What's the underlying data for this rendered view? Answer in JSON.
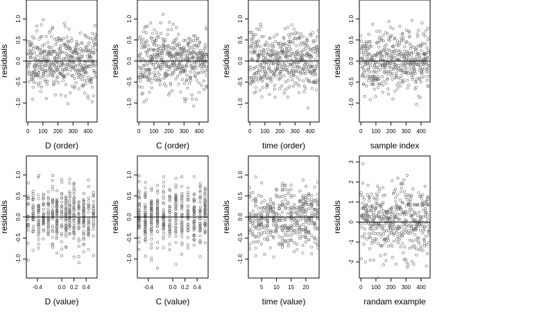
{
  "chart_data": [
    {
      "type": "scatter",
      "xlabel": "D (order)",
      "ylabel": "residuals",
      "xlim": [
        -10,
        460
      ],
      "ylim": [
        -1.45,
        1.45
      ],
      "xticks": [
        0,
        100,
        200,
        300,
        400
      ],
      "xtick_labels": [
        "0",
        "100",
        "200",
        "300",
        "400"
      ],
      "yticks": [
        -1,
        -0.5,
        0,
        0.5,
        1
      ],
      "ytick_labels": [
        "-1.0",
        "-0.5",
        "0.0",
        "0.5",
        "1.0"
      ],
      "hline": 0,
      "gen": {
        "kind": "seq",
        "n": 460,
        "from": 0,
        "to": 455,
        "spread": 0.36,
        "seed": 11
      }
    },
    {
      "type": "scatter",
      "xlabel": "C (order)",
      "ylabel": "residuals",
      "xlim": [
        -10,
        460
      ],
      "ylim": [
        -1.45,
        1.45
      ],
      "xticks": [
        0,
        100,
        200,
        300,
        400
      ],
      "xtick_labels": [
        "0",
        "100",
        "200",
        "300",
        "400"
      ],
      "yticks": [
        -1,
        -0.5,
        0,
        0.5,
        1
      ],
      "ytick_labels": [
        "-1.0",
        "-0.5",
        "0.0",
        "0.5",
        "1.0"
      ],
      "hline": 0,
      "gen": {
        "kind": "seq",
        "n": 460,
        "from": 0,
        "to": 455,
        "spread": 0.36,
        "seed": 23
      }
    },
    {
      "type": "scatter",
      "xlabel": "time (order)",
      "ylabel": "residuals",
      "xlim": [
        -10,
        460
      ],
      "ylim": [
        -1.45,
        1.45
      ],
      "xticks": [
        0,
        100,
        200,
        300,
        400
      ],
      "xtick_labels": [
        "0",
        "100",
        "200",
        "300",
        "400"
      ],
      "yticks": [
        -1,
        -0.5,
        0,
        0.5,
        1
      ],
      "ytick_labels": [
        "-1.0",
        "-0.5",
        "0.0",
        "0.5",
        "1.0"
      ],
      "hline": 0,
      "gen": {
        "kind": "seq",
        "n": 460,
        "from": 0,
        "to": 455,
        "spread": 0.36,
        "seed": 37
      }
    },
    {
      "type": "scatter",
      "xlabel": "sample index",
      "ylabel": "residuals",
      "xlim": [
        -10,
        460
      ],
      "ylim": [
        -1.45,
        1.45
      ],
      "xticks": [
        0,
        100,
        200,
        300,
        400
      ],
      "xtick_labels": [
        "0",
        "100",
        "200",
        "300",
        "400"
      ],
      "yticks": [
        -1,
        -0.5,
        0,
        0.5,
        1
      ],
      "ytick_labels": [
        "-1.0",
        "-0.5",
        "0.0",
        "0.5",
        "1.0"
      ],
      "hline": 0,
      "gen": {
        "kind": "seq",
        "n": 460,
        "from": 0,
        "to": 455,
        "spread": 0.36,
        "seed": 41
      }
    },
    {
      "type": "scatter",
      "xlabel": "D (value)",
      "ylabel": "residuals",
      "xlim": [
        -0.58,
        0.58
      ],
      "ylim": [
        -1.45,
        1.45
      ],
      "xticks": [
        -0.4,
        0,
        0.2,
        0.4
      ],
      "xtick_labels": [
        "-0.4",
        "0.0",
        "0.2",
        "0.4"
      ],
      "yticks": [
        -1,
        -0.5,
        0,
        0.5,
        1
      ],
      "ytick_labels": [
        "-1.0",
        "-0.5",
        "0.0",
        "0.5",
        "1.0"
      ],
      "hline": 0,
      "gen": {
        "kind": "levels",
        "n": 460,
        "levels": [
          -0.55,
          -0.47,
          -0.38,
          -0.3,
          -0.22,
          -0.15,
          -0.08,
          0,
          0.07,
          0.13,
          0.2,
          0.28,
          0.36,
          0.44,
          0.52
        ],
        "spread": 0.36,
        "seed": 53
      }
    },
    {
      "type": "scatter",
      "xlabel": "C (value)",
      "ylabel": "residuals",
      "xlim": [
        -0.58,
        0.58
      ],
      "ylim": [
        -1.45,
        1.45
      ],
      "xticks": [
        -0.4,
        0,
        0.2,
        0.4
      ],
      "xtick_labels": [
        "-0.4",
        "0.0",
        "0.2",
        "0.4"
      ],
      "yticks": [
        -1,
        -0.5,
        0,
        0.5,
        1
      ],
      "ytick_labels": [
        "-1.0",
        "-0.5",
        "0.0",
        "0.5",
        "1.0"
      ],
      "hline": 0,
      "gen": {
        "kind": "levels",
        "n": 460,
        "levels": [
          -0.55,
          -0.45,
          -0.35,
          -0.25,
          -0.15,
          -0.05,
          0.05,
          0.15,
          0.25,
          0.35,
          0.45,
          0.53
        ],
        "spread": 0.36,
        "seed": 67
      }
    },
    {
      "type": "scatter",
      "xlabel": "time (value)",
      "ylabel": "residuals",
      "xlim": [
        0.5,
        24.5
      ],
      "ylim": [
        -1.45,
        1.45
      ],
      "xticks": [
        5,
        10,
        15,
        20
      ],
      "xtick_labels": [
        "5",
        "10",
        "15",
        "20"
      ],
      "yticks": [
        -1,
        -0.5,
        0,
        0.5,
        1
      ],
      "ytick_labels": [
        "-1.0",
        "-0.5",
        "0.0",
        "0.5",
        "1.0"
      ],
      "hline": 0,
      "gen": {
        "kind": "levels",
        "n": 460,
        "levels": [
          1,
          2,
          3,
          4,
          5,
          6,
          7,
          8,
          9,
          10,
          11,
          12,
          13,
          14,
          15,
          16,
          17,
          18,
          19,
          20,
          21,
          22,
          23,
          24
        ],
        "spread": 0.36,
        "seed": 79
      }
    },
    {
      "type": "scatter",
      "xlabel": "randam example",
      "ylabel": "residuals",
      "xlim": [
        -10,
        460
      ],
      "ylim": [
        -2.8,
        3.3
      ],
      "xticks": [
        0,
        100,
        200,
        300,
        400
      ],
      "xtick_labels": [
        "0",
        "100",
        "200",
        "300",
        "400"
      ],
      "yticks": [
        -2,
        -1,
        0,
        1,
        2,
        3
      ],
      "ytick_labels": [
        "-2",
        "-1",
        "0",
        "1",
        "2",
        "3"
      ],
      "hline": 0,
      "gen": {
        "kind": "seq",
        "n": 460,
        "from": 0,
        "to": 455,
        "spread": 0.95,
        "seed": 97
      }
    }
  ]
}
